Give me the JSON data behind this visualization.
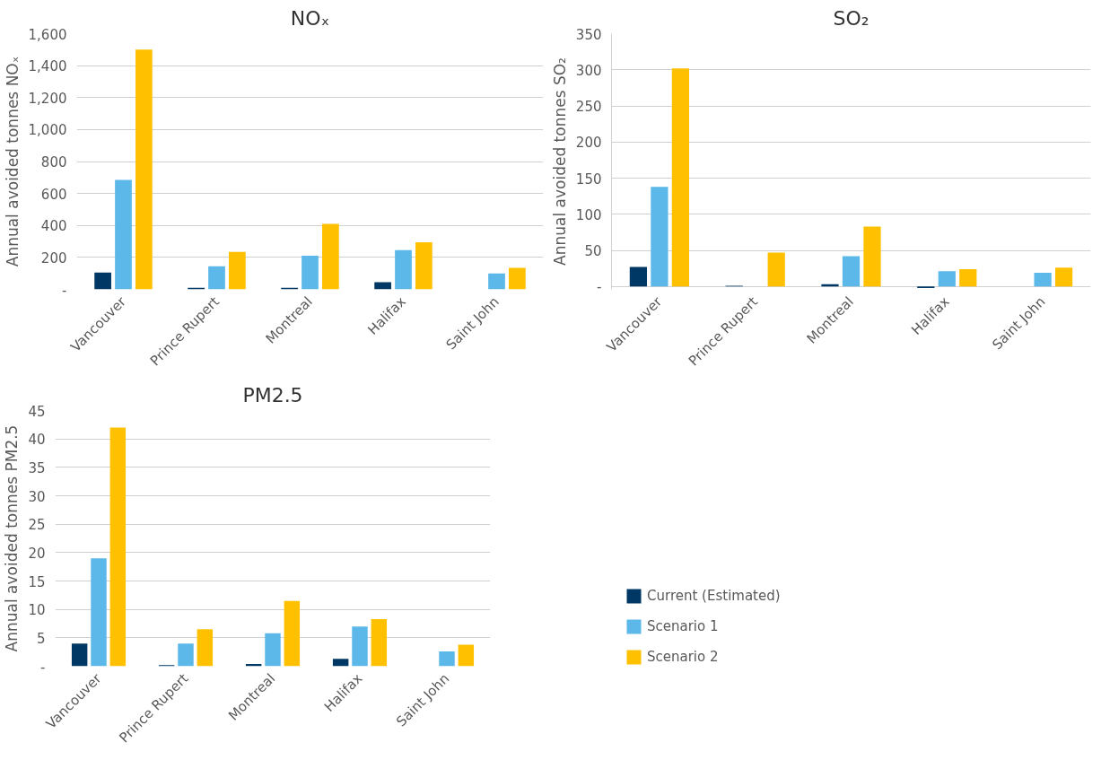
{
  "chart_data": [
    {
      "type": "bar",
      "title": "NOₓ",
      "ylabel": "Annual avoided tonnes NOₓ",
      "categories": [
        "Vancouver",
        "Prince Rupert",
        "Montreal",
        "Halifax",
        "Saint John"
      ],
      "series": [
        {
          "color": "#003865",
          "values": [
            105,
            10,
            10,
            45,
            null
          ]
        },
        {
          "color": "#5bb8e8",
          "values": [
            685,
            145,
            210,
            245,
            100
          ]
        },
        {
          "color": "#ffc000",
          "values": [
            1500,
            235,
            410,
            295,
            135
          ]
        }
      ],
      "ylim": [
        0,
        1600
      ],
      "yticks": [
        {
          "value": 0,
          "label": "-"
        },
        200,
        400,
        600,
        800,
        {
          "value": 1000,
          "label": "1,000"
        },
        {
          "value": 1200,
          "label": "1,200"
        },
        {
          "value": 1400,
          "label": "1,400"
        },
        {
          "value": 1600,
          "label": "1,600"
        }
      ],
      "grid": "y"
    },
    {
      "type": "bar",
      "title": "SO₂",
      "ylabel": "Annual avoided tonnes SO₂",
      "categories": [
        "Vancouver",
        "Prince Rupert",
        "Montreal",
        "Halifax",
        "Saint John"
      ],
      "series": [
        {
          "color": "#003865",
          "values": [
            27,
            1,
            3,
            -2,
            null
          ]
        },
        {
          "color": "#5bb8e8",
          "values": [
            138,
            0,
            42,
            21,
            19
          ]
        },
        {
          "color": "#ffc000",
          "values": [
            302,
            47,
            83,
            24,
            26
          ]
        }
      ],
      "ylim": [
        -4,
        350
      ],
      "yticks": [
        {
          "value": 0,
          "label": "-"
        },
        50,
        100,
        150,
        200,
        250,
        300,
        350
      ],
      "grid": "y"
    },
    {
      "type": "bar",
      "title": "PM2.5",
      "ylabel": "Annual avoided tonnes PM2.5",
      "categories": [
        "Vancouver",
        "Prince Rupert",
        "Montreal",
        "Halifax",
        "Saint John"
      ],
      "series": [
        {
          "name": "Current (Estimated)",
          "color": "#003865",
          "values": [
            4,
            0.2,
            0.4,
            1.3,
            null
          ]
        },
        {
          "name": "Scenario 1",
          "color": "#5bb8e8",
          "values": [
            19,
            4,
            5.8,
            7,
            2.6
          ]
        },
        {
          "name": "Scenario 2",
          "color": "#ffc000",
          "values": [
            42,
            6.5,
            11.5,
            8.3,
            3.8
          ]
        }
      ],
      "ylim": [
        0,
        45
      ],
      "yticks": [
        {
          "value": 0,
          "label": "-"
        },
        5,
        10,
        15,
        20,
        25,
        30,
        35,
        40,
        45
      ],
      "grid": "y",
      "legend": "right"
    }
  ]
}
